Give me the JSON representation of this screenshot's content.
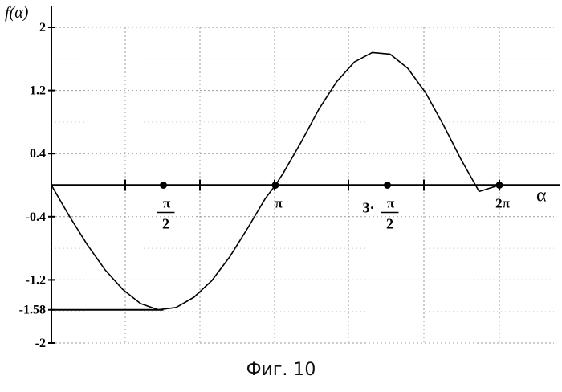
{
  "chart_data": {
    "type": "line",
    "ylabel": "f(α)",
    "xlabel": "α",
    "ylim": [
      -2,
      2
    ],
    "y_ticks": [
      2,
      1.2,
      0.4,
      -0.4,
      -1.2,
      -1.58,
      -2
    ],
    "y_tick_labels": [
      "2",
      "1.2",
      "0.4",
      "-0.4",
      "-1.2",
      "-1.58",
      "-2"
    ],
    "x_tick_labels": [
      {
        "x": 1.5708,
        "top": "π",
        "bottom": "2",
        "prefix": ""
      },
      {
        "x": 3.1416,
        "top": "π",
        "bottom": "",
        "prefix": ""
      },
      {
        "x": 4.7124,
        "top": "π",
        "bottom": "2",
        "prefix": "3·"
      },
      {
        "x": 6.2832,
        "top": "2π",
        "bottom": "",
        "prefix": ""
      }
    ],
    "xlim": [
      0,
      6.9
    ],
    "grid": true,
    "series": [
      {
        "x": [
          0,
          0.25,
          0.5,
          0.75,
          1.0,
          1.25,
          1.5,
          1.75,
          2.0,
          2.25,
          2.5,
          2.75,
          3.0,
          3.1416,
          3.25,
          3.5,
          3.75,
          4.0,
          4.25,
          4.5,
          4.75,
          5.0,
          5.25,
          5.5,
          5.75,
          6.0,
          6.2832
        ],
        "y": [
          0,
          -0.39,
          -0.75,
          -1.07,
          -1.32,
          -1.5,
          -1.58,
          -1.55,
          -1.42,
          -1.21,
          -0.91,
          -0.55,
          -0.17,
          0,
          0.15,
          0.54,
          0.96,
          1.31,
          1.56,
          1.68,
          1.66,
          1.48,
          1.17,
          0.76,
          0.32,
          -0.08,
          0
        ],
        "color": "#000000"
      }
    ],
    "horizontal_marker": {
      "y": -1.58,
      "x_from": 0,
      "x_to": 1.5708
    },
    "point_markers": [
      1.5708,
      3.1416,
      4.7124,
      6.2832
    ]
  },
  "caption": "Фиг. 10"
}
